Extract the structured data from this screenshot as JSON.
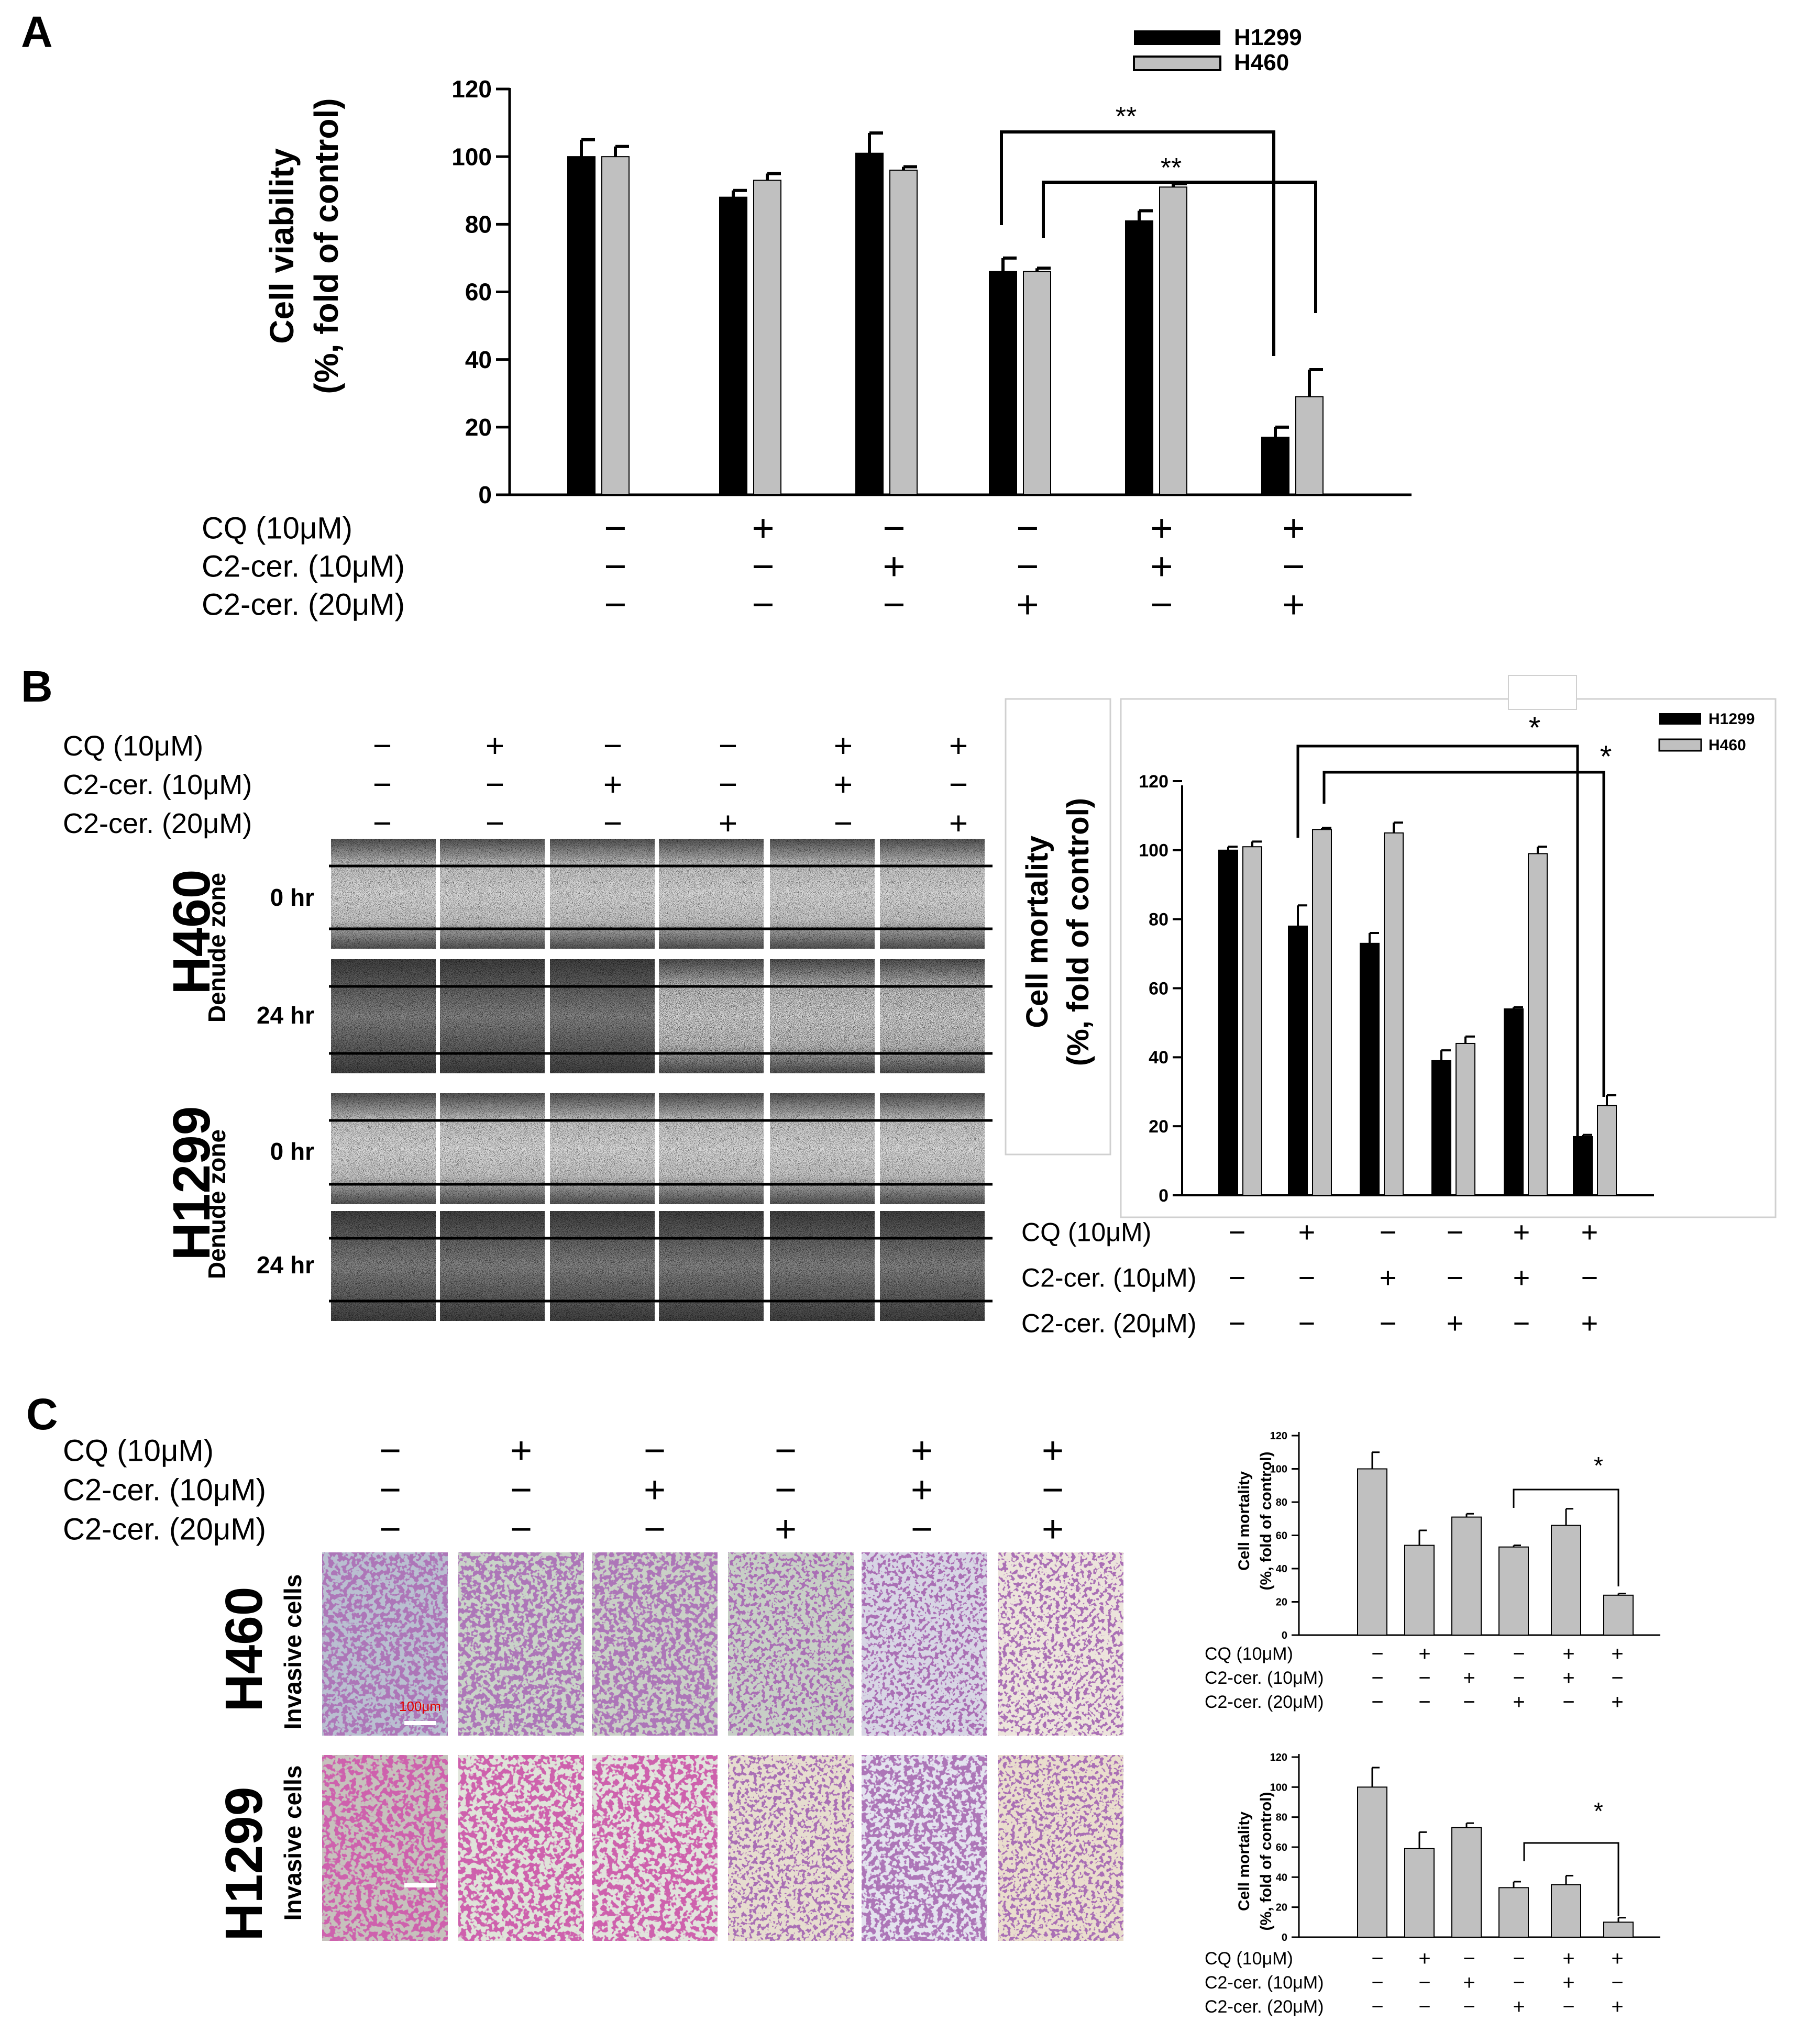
{
  "panel_labels": {
    "a": "A",
    "b": "B",
    "c": "C"
  },
  "treatments": {
    "labels": [
      "CQ (10μM)",
      "C2-cer. (10μM)",
      "C2-cer. (20μM)"
    ],
    "rows": [
      [
        "−",
        "+",
        "−",
        "−",
        "+",
        "+"
      ],
      [
        "−",
        "−",
        "+",
        "−",
        "+",
        "−"
      ],
      [
        "−",
        "−",
        "−",
        "+",
        "−",
        "+"
      ]
    ]
  },
  "colors": {
    "H1299": "#000000",
    "H460": "#c0c0c0",
    "grey_bar": "#c0c0c0"
  },
  "panel_a": {
    "legend": [
      "H1299",
      "H460"
    ],
    "sig": [
      "**",
      "**"
    ]
  },
  "panel_b": {
    "cell_lines": [
      "H460",
      "H1299"
    ],
    "zone_label": "Denude zone",
    "times": [
      "0 hr",
      "24 hr"
    ],
    "legend": [
      "H1299",
      "H460"
    ],
    "sig": [
      "*",
      "*"
    ]
  },
  "panel_c": {
    "cell_lines": [
      "H460",
      "H1299"
    ],
    "image_label": "Invasive cells",
    "scale_bar": "100μm",
    "sig": [
      "*",
      "*"
    ]
  },
  "chart_data": [
    {
      "type": "bar",
      "panel": "A",
      "categories": [
        "1",
        "2",
        "3",
        "4",
        "5",
        "6"
      ],
      "series": [
        {
          "name": "H1299",
          "values": [
            100,
            88,
            101,
            66,
            81,
            17
          ],
          "errors": [
            5,
            2,
            6,
            4,
            3,
            3
          ]
        },
        {
          "name": "H460",
          "values": [
            100,
            93,
            96,
            66,
            91,
            29
          ],
          "errors": [
            3,
            2,
            1,
            1,
            1,
            8
          ]
        }
      ],
      "ylabel": "Cell viability (%, fold of control)",
      "ylim": [
        0,
        120
      ],
      "yticks": [
        0,
        20,
        40,
        60,
        80,
        100,
        120
      ],
      "legend_position": "top-right"
    },
    {
      "type": "bar",
      "panel": "B",
      "categories": [
        "1",
        "2",
        "3",
        "4",
        "5",
        "6"
      ],
      "series": [
        {
          "name": "H1299",
          "values": [
            100,
            78,
            73,
            39,
            54,
            17
          ],
          "errors": [
            1,
            6,
            3,
            3,
            0.5,
            0.5
          ]
        },
        {
          "name": "H460",
          "values": [
            101,
            106,
            105,
            44,
            99,
            26
          ],
          "errors": [
            1.5,
            0.5,
            3,
            2,
            2,
            3
          ]
        }
      ],
      "ylabel": "Cell mortality (%, fold of control)",
      "ylim": [
        0,
        120
      ],
      "yticks": [
        0,
        20,
        40,
        60,
        80,
        100,
        120
      ],
      "legend_position": "top-right"
    },
    {
      "type": "bar",
      "panel": "C-H460",
      "categories": [
        "1",
        "2",
        "3",
        "4",
        "5",
        "6"
      ],
      "values": [
        100,
        54,
        71,
        53,
        66,
        24
      ],
      "errors": [
        10,
        9,
        2,
        1,
        10,
        1
      ],
      "ylabel": "Cell mortality (%, fold of control)",
      "ylim": [
        0,
        120
      ],
      "yticks": [
        0,
        20,
        40,
        60,
        80,
        100,
        120
      ]
    },
    {
      "type": "bar",
      "panel": "C-H1299",
      "categories": [
        "1",
        "2",
        "3",
        "4",
        "5",
        "6"
      ],
      "values": [
        100,
        59,
        73,
        33,
        35,
        10
      ],
      "errors": [
        13,
        11,
        3,
        4,
        6,
        3
      ],
      "ylabel": "Cell mortality (%, fold of control)",
      "ylim": [
        0,
        120
      ],
      "yticks": [
        0,
        20,
        40,
        60,
        80,
        100,
        120
      ]
    }
  ]
}
